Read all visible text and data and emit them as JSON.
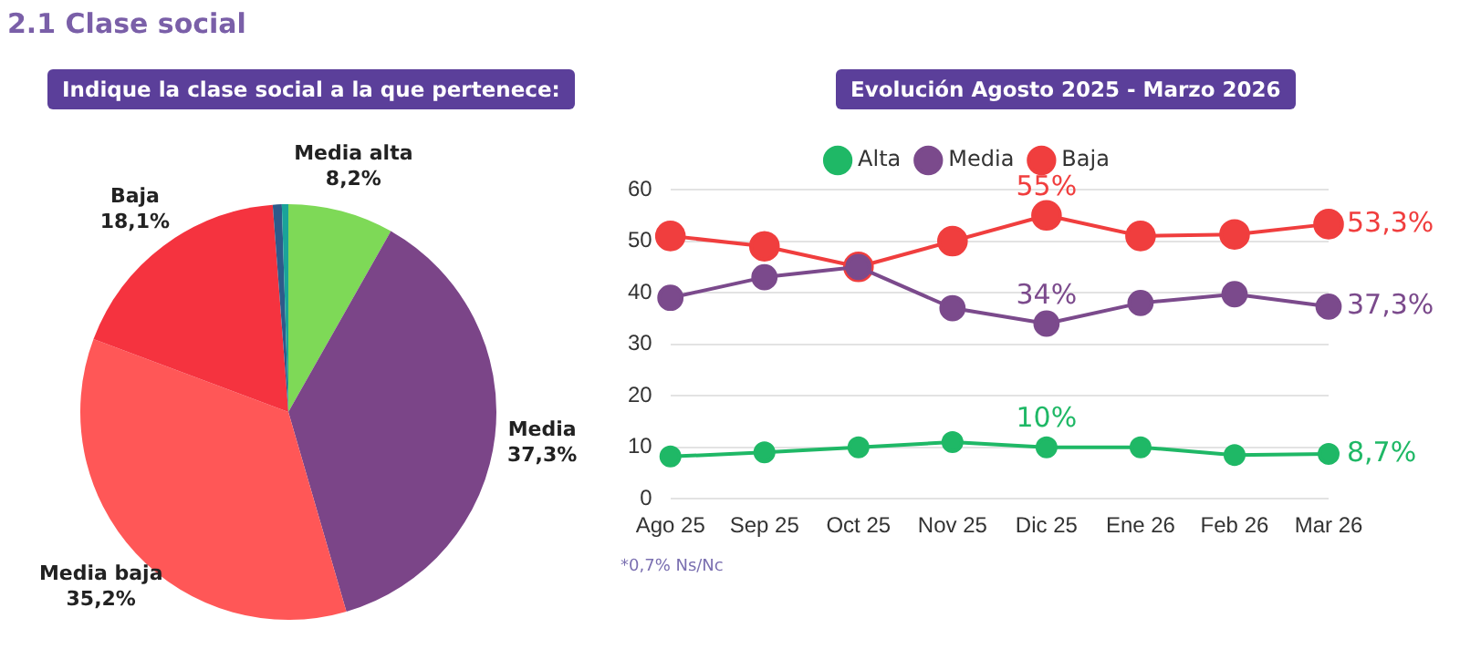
{
  "chart_data": [
    {
      "type": "pie",
      "title": "2.1 Clase social",
      "subtitle": "Indique la clase social a la que pertenece:",
      "categories": [
        "Media alta",
        "Media",
        "Media baja",
        "Baja",
        null,
        null
      ],
      "values": [
        8.2,
        37.3,
        35.2,
        18.1,
        0.7,
        0.5
      ],
      "colors": [
        "#7ed957",
        "#7b4588",
        "#ff5757",
        "#f5333f",
        "#2e5a8a",
        "#1aa39a"
      ],
      "value_labels": [
        "8,2%",
        "37,3%",
        "35,2%",
        "18,1%",
        null,
        null
      ]
    },
    {
      "type": "line",
      "title": "Evolución Agosto 2025 - Marzo 2026",
      "categories": [
        "Ago 25",
        "Sep 25",
        "Oct 25",
        "Nov 25",
        "Dic 25",
        "Ene 26",
        "Feb 26",
        "Mar 26"
      ],
      "series": [
        {
          "name": "Alta",
          "color": "#1fb866",
          "values": [
            8.2,
            9,
            10,
            11,
            10,
            10,
            8.5,
            8.7
          ],
          "value_labels": [
            null,
            null,
            null,
            null,
            "10%",
            null,
            null,
            "8,7%"
          ]
        },
        {
          "name": "Media",
          "color": "#7b4a8c",
          "values": [
            39,
            43,
            45,
            37,
            34,
            38,
            39.7,
            37.3
          ],
          "value_labels": [
            null,
            null,
            null,
            null,
            "34%",
            null,
            null,
            "37,3%"
          ]
        },
        {
          "name": "Baja",
          "color": "#f03e3e",
          "values": [
            51,
            49,
            45,
            50,
            55,
            51,
            51.3,
            53.3
          ],
          "value_labels": [
            null,
            null,
            null,
            null,
            "55%",
            null,
            null,
            "53,3%"
          ]
        }
      ],
      "ylim": [
        0,
        60
      ],
      "yticks": [
        0,
        10,
        20,
        30,
        40,
        50,
        60
      ],
      "grid": "y",
      "legend": "top",
      "marker": "circle",
      "annotations": [
        "*0,7% Ns/Nc"
      ]
    }
  ]
}
